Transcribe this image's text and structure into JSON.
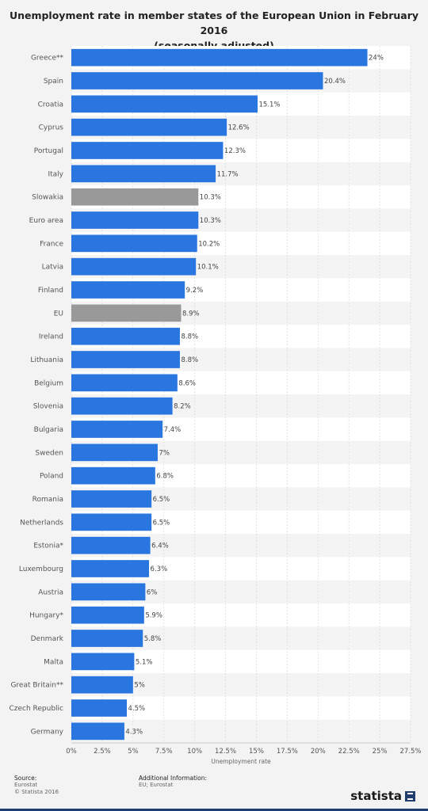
{
  "title_line1": "Unemployment rate in member states of the European Union in February 2016",
  "title_line2": "(seasonally adjusted)",
  "colors": {
    "bar": "#2976e0",
    "highlight": "#999999",
    "stripe": "#f4f4f4"
  },
  "chart_data": {
    "type": "bar",
    "orientation": "horizontal",
    "categories": [
      "Greece**",
      "Spain",
      "Croatia",
      "Cyprus",
      "Portugal",
      "Italy",
      "Slowakia",
      "Euro area",
      "France",
      "Latvia",
      "Finland",
      "EU",
      "Ireland",
      "Lithuania",
      "Belgium",
      "Slovenia",
      "Bulgaria",
      "Sweden",
      "Poland",
      "Romania",
      "Netherlands",
      "Estonia*",
      "Luxembourg",
      "Austria",
      "Hungary*",
      "Denmark",
      "Malta",
      "Great Britain**",
      "Czech Republic",
      "Germany"
    ],
    "values": [
      24,
      20.4,
      15.1,
      12.6,
      12.3,
      11.7,
      10.3,
      10.3,
      10.2,
      10.1,
      9.2,
      8.9,
      8.8,
      8.8,
      8.6,
      8.2,
      7.4,
      7,
      6.8,
      6.5,
      6.5,
      6.4,
      6.3,
      6,
      5.9,
      5.8,
      5.1,
      5,
      4.5,
      4.3
    ],
    "value_labels": [
      "24%",
      "20.4%",
      "15.1%",
      "12.6%",
      "12.3%",
      "11.7%",
      "10.3%",
      "10.3%",
      "10.2%",
      "10.1%",
      "9.2%",
      "8.9%",
      "8.8%",
      "8.8%",
      "8.6%",
      "8.2%",
      "7.4%",
      "7%",
      "6.8%",
      "6.5%",
      "6.5%",
      "6.4%",
      "6.3%",
      "6%",
      "5.9%",
      "5.8%",
      "5.1%",
      "5%",
      "4.5%",
      "4.3%"
    ],
    "highlighted": [
      "Slowakia",
      "EU"
    ],
    "xlabel": "Unemployment rate",
    "xlim": [
      0,
      27.5
    ],
    "xticks": [
      "0%",
      "2.5%",
      "5%",
      "7.5%",
      "10%",
      "12.5%",
      "15%",
      "17.5%",
      "20%",
      "22.5%",
      "25%",
      "27.5%"
    ],
    "grid": true
  },
  "footer": {
    "source_heading": "Source:",
    "source_lines": [
      "Eurostat",
      "© Statista 2016"
    ],
    "info_heading": "Additional Information:",
    "info_lines": [
      "EU; Eurostat"
    ],
    "brand": "statista"
  }
}
